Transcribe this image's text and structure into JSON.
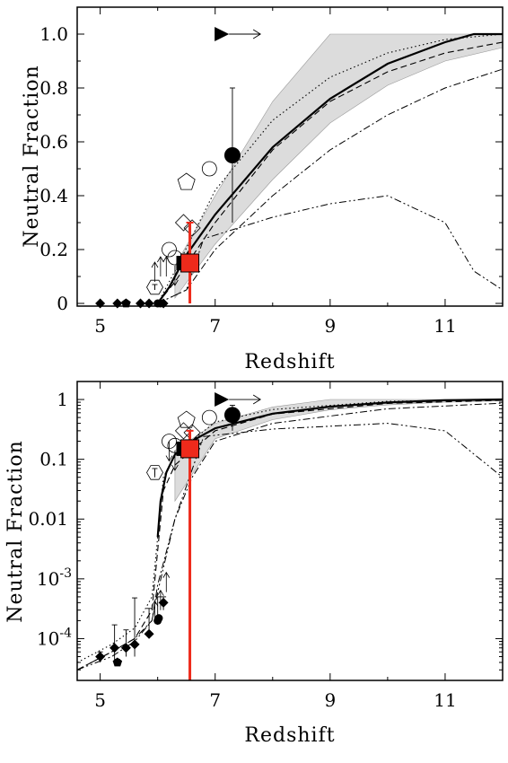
{
  "chart_data": [
    {
      "type": "scatter",
      "xlabel": "Redshift",
      "ylabel": "Neutral Fraction",
      "xlim": [
        4.6,
        12.0
      ],
      "ylim": [
        -0.01,
        1.1
      ],
      "yscale": "linear",
      "xticks": [
        "5",
        "7",
        "9",
        "11"
      ],
      "yticks": [
        {
          "value": 0,
          "label": "0"
        },
        {
          "value": 0.2,
          "label": "0.2"
        },
        {
          "value": 0.4,
          "label": "0.4"
        },
        {
          "value": 0.6,
          "label": "0.6"
        },
        {
          "value": 0.8,
          "label": "0.8"
        },
        {
          "value": 1.0,
          "label": "1.0"
        }
      ],
      "shaded_band": {
        "x": [
          6.3,
          7,
          8,
          9,
          10,
          11,
          12
        ],
        "upper": [
          0.14,
          0.4,
          0.75,
          1.0,
          1.0,
          1.0,
          1.0
        ],
        "lower": [
          0.02,
          0.22,
          0.46,
          0.67,
          0.81,
          0.9,
          0.95
        ]
      },
      "curves": [
        {
          "style": "solid",
          "x": [
            6.0,
            6.2,
            6.5,
            7,
            8,
            9,
            10,
            11,
            11.5,
            12
          ],
          "y": [
            0.0,
            0.06,
            0.18,
            0.33,
            0.58,
            0.76,
            0.89,
            0.97,
            1.0,
            1.0
          ]
        },
        {
          "style": "dashed",
          "x": [
            6.0,
            6.3,
            7,
            8,
            9,
            10,
            11,
            12
          ],
          "y": [
            0.0,
            0.08,
            0.3,
            0.57,
            0.75,
            0.86,
            0.93,
            0.97
          ]
        },
        {
          "style": "dotted",
          "x": [
            6.0,
            6.3,
            7,
            8,
            9,
            10,
            11,
            12
          ],
          "y": [
            0.0,
            0.12,
            0.42,
            0.68,
            0.84,
            0.93,
            0.98,
            1.0
          ]
        },
        {
          "style": "dashdot",
          "x": [
            6.0,
            6.5,
            7,
            8,
            9,
            10,
            11,
            12
          ],
          "y": [
            0.0,
            0.05,
            0.2,
            0.4,
            0.57,
            0.7,
            0.8,
            0.87
          ]
        },
        {
          "style": "dashdotdot",
          "x": [
            6.0,
            6.5,
            6.8,
            8,
            9,
            10,
            11,
            11.5,
            12
          ],
          "y": [
            0.0,
            0.05,
            0.24,
            0.32,
            0.37,
            0.4,
            0.3,
            0.12,
            0.05
          ]
        }
      ],
      "points": [
        {
          "marker": "diamond",
          "x": 5.0,
          "y": 0.0
        },
        {
          "marker": "diamond",
          "x": 5.3,
          "y": 0.0
        },
        {
          "marker": "pentagon",
          "x": 5.45,
          "y": 0.0
        },
        {
          "marker": "diamond",
          "x": 5.7,
          "y": 0.0
        },
        {
          "marker": "diamond",
          "x": 5.85,
          "y": 0.0
        },
        {
          "marker": "circle",
          "x": 6.0,
          "y": 0.0
        },
        {
          "marker": "circle",
          "x": 6.05,
          "y": 0.0
        },
        {
          "marker": "diamond",
          "x": 6.1,
          "y": 0.0
        },
        {
          "marker": "open-hexagon",
          "x": 5.95,
          "y": 0.06,
          "yerr": [
            0.01,
            0.01
          ]
        },
        {
          "marker": "arrow-up",
          "x": 5.95,
          "y": 0.08
        },
        {
          "marker": "arrow-up",
          "x": 6.05,
          "y": 0.1
        },
        {
          "marker": "arrow-up",
          "x": 6.15,
          "y": 0.1
        },
        {
          "marker": "open-circle",
          "x": 6.2,
          "y": 0.2
        },
        {
          "marker": "open-circle",
          "x": 6.3,
          "y": 0.17
        },
        {
          "marker": "filled-square",
          "x": 6.45,
          "y": 0.15
        },
        {
          "marker": "arrow-down",
          "x": 6.3,
          "y": 0.14
        },
        {
          "marker": "open-diamond",
          "x": 6.45,
          "y": 0.3
        },
        {
          "marker": "open-pentagon",
          "x": 6.5,
          "y": 0.45
        },
        {
          "marker": "open-diamond",
          "x": 6.6,
          "y": 0.28
        },
        {
          "marker": "open-circle",
          "x": 6.9,
          "y": 0.5
        },
        {
          "marker": "filled-circle",
          "x": 7.3,
          "y": 0.55,
          "yerr": [
            0.25,
            0.25
          ]
        },
        {
          "marker": "filled-triangle-right",
          "x": 7.1,
          "y": 1.0
        }
      ],
      "highlight": {
        "marker": "red-square",
        "x": 6.56,
        "y": 0.15,
        "yerr": [
          0.15,
          0.15
        ],
        "color": "#ee2a1b"
      }
    },
    {
      "type": "scatter",
      "xlabel": "Redshift",
      "ylabel": "Neutral Fraction",
      "xlim": [
        4.6,
        12.0
      ],
      "ylim": [
        2e-05,
        2.0
      ],
      "yscale": "log",
      "xticks": [
        "5",
        "7",
        "9",
        "11"
      ],
      "yticks": [
        {
          "value": 1,
          "label": "1"
        },
        {
          "value": 0.1,
          "label": "0.1"
        },
        {
          "value": 0.01,
          "label": "0.01"
        },
        {
          "value": 0.001,
          "label": "10",
          "exponent": "-3"
        },
        {
          "value": 0.0001,
          "label": "10",
          "exponent": "-4"
        }
      ],
      "shaded_band": {
        "x": [
          6.3,
          7,
          8,
          9,
          10,
          11,
          12
        ],
        "upper": [
          0.14,
          0.4,
          0.75,
          1.0,
          1.0,
          1.0,
          1.0
        ],
        "lower": [
          0.02,
          0.22,
          0.46,
          0.67,
          0.81,
          0.9,
          0.95
        ]
      },
      "curves": [
        {
          "style": "solid",
          "x": [
            6.0,
            6.05,
            6.15,
            6.3,
            6.5,
            7,
            8,
            9,
            10,
            11,
            12
          ],
          "y": [
            0.005,
            0.02,
            0.06,
            0.12,
            0.18,
            0.33,
            0.58,
            0.76,
            0.89,
            0.97,
            1.0
          ]
        },
        {
          "style": "dashed",
          "x": [
            4.6,
            5.2,
            5.6,
            5.9,
            6.0,
            6.1,
            6.3,
            7,
            8,
            10,
            12
          ],
          "y": [
            3e-05,
            6e-05,
            0.0001,
            0.0003,
            0.003,
            0.03,
            0.08,
            0.3,
            0.57,
            0.86,
            0.97
          ]
        },
        {
          "style": "dotted",
          "x": [
            4.6,
            5.2,
            5.6,
            5.9,
            6.0,
            6.1,
            6.3,
            7,
            8,
            10,
            12
          ],
          "y": [
            4e-05,
            8e-05,
            0.00015,
            0.0005,
            0.005,
            0.05,
            0.12,
            0.42,
            0.68,
            0.93,
            1.0
          ]
        },
        {
          "style": "dashdot",
          "x": [
            4.6,
            5.2,
            5.6,
            5.9,
            6.0,
            6.3,
            6.6,
            7,
            8,
            10,
            12
          ],
          "y": [
            3e-05,
            6e-05,
            0.0001,
            0.0002,
            0.0008,
            0.01,
            0.05,
            0.2,
            0.4,
            0.7,
            0.87
          ]
        },
        {
          "style": "dashdotdot",
          "x": [
            4.6,
            5.2,
            5.6,
            5.9,
            6.0,
            6.3,
            6.8,
            8,
            10,
            11,
            12
          ],
          "y": [
            3e-05,
            5e-05,
            9e-05,
            0.0002,
            0.0006,
            0.01,
            0.24,
            0.32,
            0.4,
            0.3,
            0.05
          ]
        }
      ],
      "points": [
        {
          "marker": "diamond",
          "x": 5.0,
          "y": 5e-05,
          "yerr": [
            1e-05,
            1e-05
          ]
        },
        {
          "marker": "diamond",
          "x": 5.25,
          "y": 7e-05,
          "yerr": [
            3e-05,
            0.0001
          ]
        },
        {
          "marker": "pentagon",
          "x": 5.3,
          "y": 4e-05,
          "yerr": [
            5e-06,
            5e-06
          ]
        },
        {
          "marker": "diamond",
          "x": 5.45,
          "y": 7e-05,
          "yerr": [
            2e-05,
            7e-05
          ]
        },
        {
          "marker": "diamond",
          "x": 5.6,
          "y": 8e-05,
          "yerr": [
            3e-05,
            0.0004
          ]
        },
        {
          "marker": "diamond",
          "x": 5.85,
          "y": 0.00012,
          "yerr": [
            2e-05,
            0.0002
          ]
        },
        {
          "marker": "circle",
          "x": 6.0,
          "y": 0.0002,
          "yerr": [
            3e-05,
            0.0003
          ]
        },
        {
          "marker": "circle",
          "x": 6.02,
          "y": 0.00022
        },
        {
          "marker": "diamond",
          "x": 6.1,
          "y": 0.0004,
          "yerr": [
            0.0001,
            0.0001
          ]
        },
        {
          "marker": "arrow-up",
          "x": 5.95,
          "y": 0.0002
        },
        {
          "marker": "arrow-up",
          "x": 6.05,
          "y": 0.0003
        },
        {
          "marker": "arrow-up",
          "x": 6.15,
          "y": 0.0006
        },
        {
          "marker": "open-hexagon",
          "x": 5.95,
          "y": 0.06,
          "yerr": [
            0.01,
            0.01
          ]
        },
        {
          "marker": "open-circle",
          "x": 6.2,
          "y": 0.2
        },
        {
          "marker": "open-circle",
          "x": 6.3,
          "y": 0.17
        },
        {
          "marker": "arrow-down",
          "x": 6.3,
          "y": 0.14
        },
        {
          "marker": "arrow-down",
          "x": 6.2,
          "y": 0.2
        },
        {
          "marker": "filled-square",
          "x": 6.45,
          "y": 0.15
        },
        {
          "marker": "open-diamond",
          "x": 6.45,
          "y": 0.3
        },
        {
          "marker": "open-pentagon",
          "x": 6.5,
          "y": 0.45
        },
        {
          "marker": "open-diamond",
          "x": 6.6,
          "y": 0.28
        },
        {
          "marker": "open-circle",
          "x": 6.9,
          "y": 0.5
        },
        {
          "marker": "filled-circle",
          "x": 7.3,
          "y": 0.55,
          "yerr": [
            0.25,
            0.25
          ]
        },
        {
          "marker": "filled-triangle-right",
          "x": 7.1,
          "y": 1.0
        }
      ],
      "highlight": {
        "marker": "red-square",
        "x": 6.56,
        "y": 0.15,
        "yerr": [
          0.14999,
          0.15
        ],
        "color": "#ee2a1b"
      }
    }
  ]
}
